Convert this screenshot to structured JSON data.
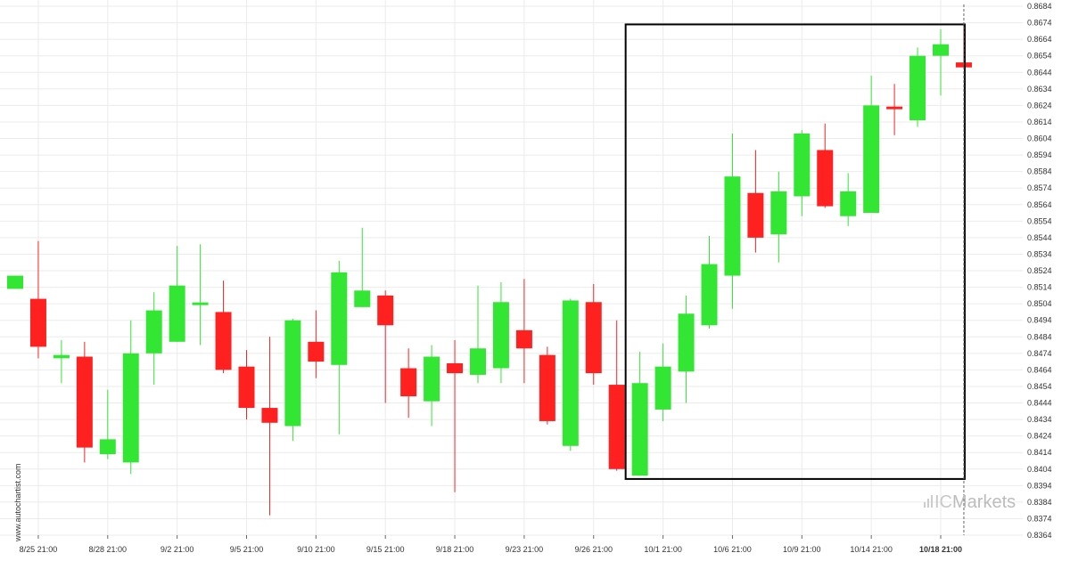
{
  "watermark": {
    "side_text": "www.autochartist.com",
    "logo_prefix": "IC",
    "logo_suffix": "Markets"
  },
  "colors": {
    "bull": "#33e633",
    "bear": "#ff2020",
    "grid": "#ebebeb",
    "box": "#000000",
    "axis": "#333333"
  },
  "chart_data": {
    "type": "candlestick",
    "title": "",
    "xlabel": "",
    "ylabel": "",
    "ylim": [
      0.8364,
      0.8684
    ],
    "grid": true,
    "y_ticks": [
      "0.8684",
      "0.8674",
      "0.8664",
      "0.8654",
      "0.8644",
      "0.8634",
      "0.8624",
      "0.8614",
      "0.8604",
      "0.8594",
      "0.8584",
      "0.8574",
      "0.8564",
      "0.8554",
      "0.8544",
      "0.8534",
      "0.8524",
      "0.8514",
      "0.8504",
      "0.8494",
      "0.8484",
      "0.8474",
      "0.8464",
      "0.8454",
      "0.8444",
      "0.8434",
      "0.8424",
      "0.8414",
      "0.8404",
      "0.8394",
      "0.8384",
      "0.8374",
      "0.8364"
    ],
    "x_ticks": [
      {
        "label": "8/25 21:00",
        "index": 1
      },
      {
        "label": "8/28 21:00",
        "index": 4
      },
      {
        "label": "9/2 21:00",
        "index": 7
      },
      {
        "label": "9/5 21:00",
        "index": 10
      },
      {
        "label": "9/10 21:00",
        "index": 13
      },
      {
        "label": "9/15 21:00",
        "index": 16
      },
      {
        "label": "9/18 21:00",
        "index": 19
      },
      {
        "label": "9/23 21:00",
        "index": 22
      },
      {
        "label": "9/26 21:00",
        "index": 25
      },
      {
        "label": "10/1 21:00",
        "index": 28
      },
      {
        "label": "10/6 21:00",
        "index": 31
      },
      {
        "label": "10/9 21:00",
        "index": 34
      },
      {
        "label": "10/14 21:00",
        "index": 37
      },
      {
        "label": "10/18 21:00",
        "index": 40,
        "bold": true
      }
    ],
    "candles": [
      {
        "o": 0.8513,
        "h": 0.8521,
        "l": 0.8513,
        "c": 0.8521
      },
      {
        "o": 0.8507,
        "h": 0.8542,
        "l": 0.8471,
        "c": 0.8478
      },
      {
        "o": 0.8471,
        "h": 0.8482,
        "l": 0.8456,
        "c": 0.8473
      },
      {
        "o": 0.8472,
        "h": 0.8481,
        "l": 0.8408,
        "c": 0.8417
      },
      {
        "o": 0.8413,
        "h": 0.8452,
        "l": 0.841,
        "c": 0.8422
      },
      {
        "o": 0.8408,
        "h": 0.8494,
        "l": 0.8401,
        "c": 0.8474
      },
      {
        "o": 0.8474,
        "h": 0.8511,
        "l": 0.8455,
        "c": 0.85
      },
      {
        "o": 0.8481,
        "h": 0.8539,
        "l": 0.8481,
        "c": 0.8515
      },
      {
        "o": 0.8504,
        "h": 0.854,
        "l": 0.8479,
        "c": 0.8504
      },
      {
        "o": 0.8499,
        "h": 0.8518,
        "l": 0.8462,
        "c": 0.8464
      },
      {
        "o": 0.8466,
        "h": 0.8476,
        "l": 0.8434,
        "c": 0.8441
      },
      {
        "o": 0.8441,
        "h": 0.8484,
        "l": 0.8376,
        "c": 0.8432
      },
      {
        "o": 0.843,
        "h": 0.8495,
        "l": 0.8421,
        "c": 0.8494
      },
      {
        "o": 0.8481,
        "h": 0.85,
        "l": 0.8459,
        "c": 0.8469
      },
      {
        "o": 0.8467,
        "h": 0.853,
        "l": 0.8425,
        "c": 0.8523
      },
      {
        "o": 0.8502,
        "h": 0.855,
        "l": 0.8502,
        "c": 0.8512
      },
      {
        "o": 0.8509,
        "h": 0.8512,
        "l": 0.8444,
        "c": 0.8491
      },
      {
        "o": 0.8465,
        "h": 0.8477,
        "l": 0.8435,
        "c": 0.8448
      },
      {
        "o": 0.8445,
        "h": 0.8479,
        "l": 0.843,
        "c": 0.8472
      },
      {
        "o": 0.8468,
        "h": 0.8482,
        "l": 0.839,
        "c": 0.8462
      },
      {
        "o": 0.8461,
        "h": 0.8515,
        "l": 0.8456,
        "c": 0.8477
      },
      {
        "o": 0.8465,
        "h": 0.8517,
        "l": 0.8456,
        "c": 0.8505
      },
      {
        "o": 0.8488,
        "h": 0.8519,
        "l": 0.8456,
        "c": 0.8477
      },
      {
        "o": 0.8473,
        "h": 0.8478,
        "l": 0.8431,
        "c": 0.8433
      },
      {
        "o": 0.8418,
        "h": 0.8507,
        "l": 0.8415,
        "c": 0.8506
      },
      {
        "o": 0.8505,
        "h": 0.8516,
        "l": 0.8455,
        "c": 0.8462
      },
      {
        "o": 0.8455,
        "h": 0.8494,
        "l": 0.8403,
        "c": 0.8404
      },
      {
        "o": 0.84,
        "h": 0.8475,
        "l": 0.84,
        "c": 0.8456
      },
      {
        "o": 0.844,
        "h": 0.848,
        "l": 0.8433,
        "c": 0.8466
      },
      {
        "o": 0.8463,
        "h": 0.8509,
        "l": 0.8444,
        "c": 0.8498
      },
      {
        "o": 0.8491,
        "h": 0.8545,
        "l": 0.8489,
        "c": 0.8528
      },
      {
        "o": 0.8521,
        "h": 0.8607,
        "l": 0.8501,
        "c": 0.8581
      },
      {
        "o": 0.8571,
        "h": 0.8597,
        "l": 0.8535,
        "c": 0.8544
      },
      {
        "o": 0.8546,
        "h": 0.8584,
        "l": 0.8529,
        "c": 0.8572
      },
      {
        "o": 0.8569,
        "h": 0.8609,
        "l": 0.8557,
        "c": 0.8607
      },
      {
        "o": 0.8597,
        "h": 0.8613,
        "l": 0.8562,
        "c": 0.8563
      },
      {
        "o": 0.8557,
        "h": 0.8583,
        "l": 0.8551,
        "c": 0.8572
      },
      {
        "o": 0.8559,
        "h": 0.8642,
        "l": 0.8559,
        "c": 0.8624
      },
      {
        "o": 0.8623,
        "h": 0.8637,
        "l": 0.8606,
        "c": 0.8622
      },
      {
        "o": 0.8615,
        "h": 0.8659,
        "l": 0.8611,
        "c": 0.8654
      },
      {
        "o": 0.8654,
        "h": 0.867,
        "l": 0.863,
        "c": 0.8661
      },
      {
        "o": 0.865,
        "h": 0.8673,
        "l": 0.8648,
        "c": 0.8647
      }
    ],
    "highlight_box": {
      "start_index": 27,
      "end_index": 41,
      "y_top": 0.8673,
      "y_bottom": 0.8398
    },
    "current_index": 41
  }
}
